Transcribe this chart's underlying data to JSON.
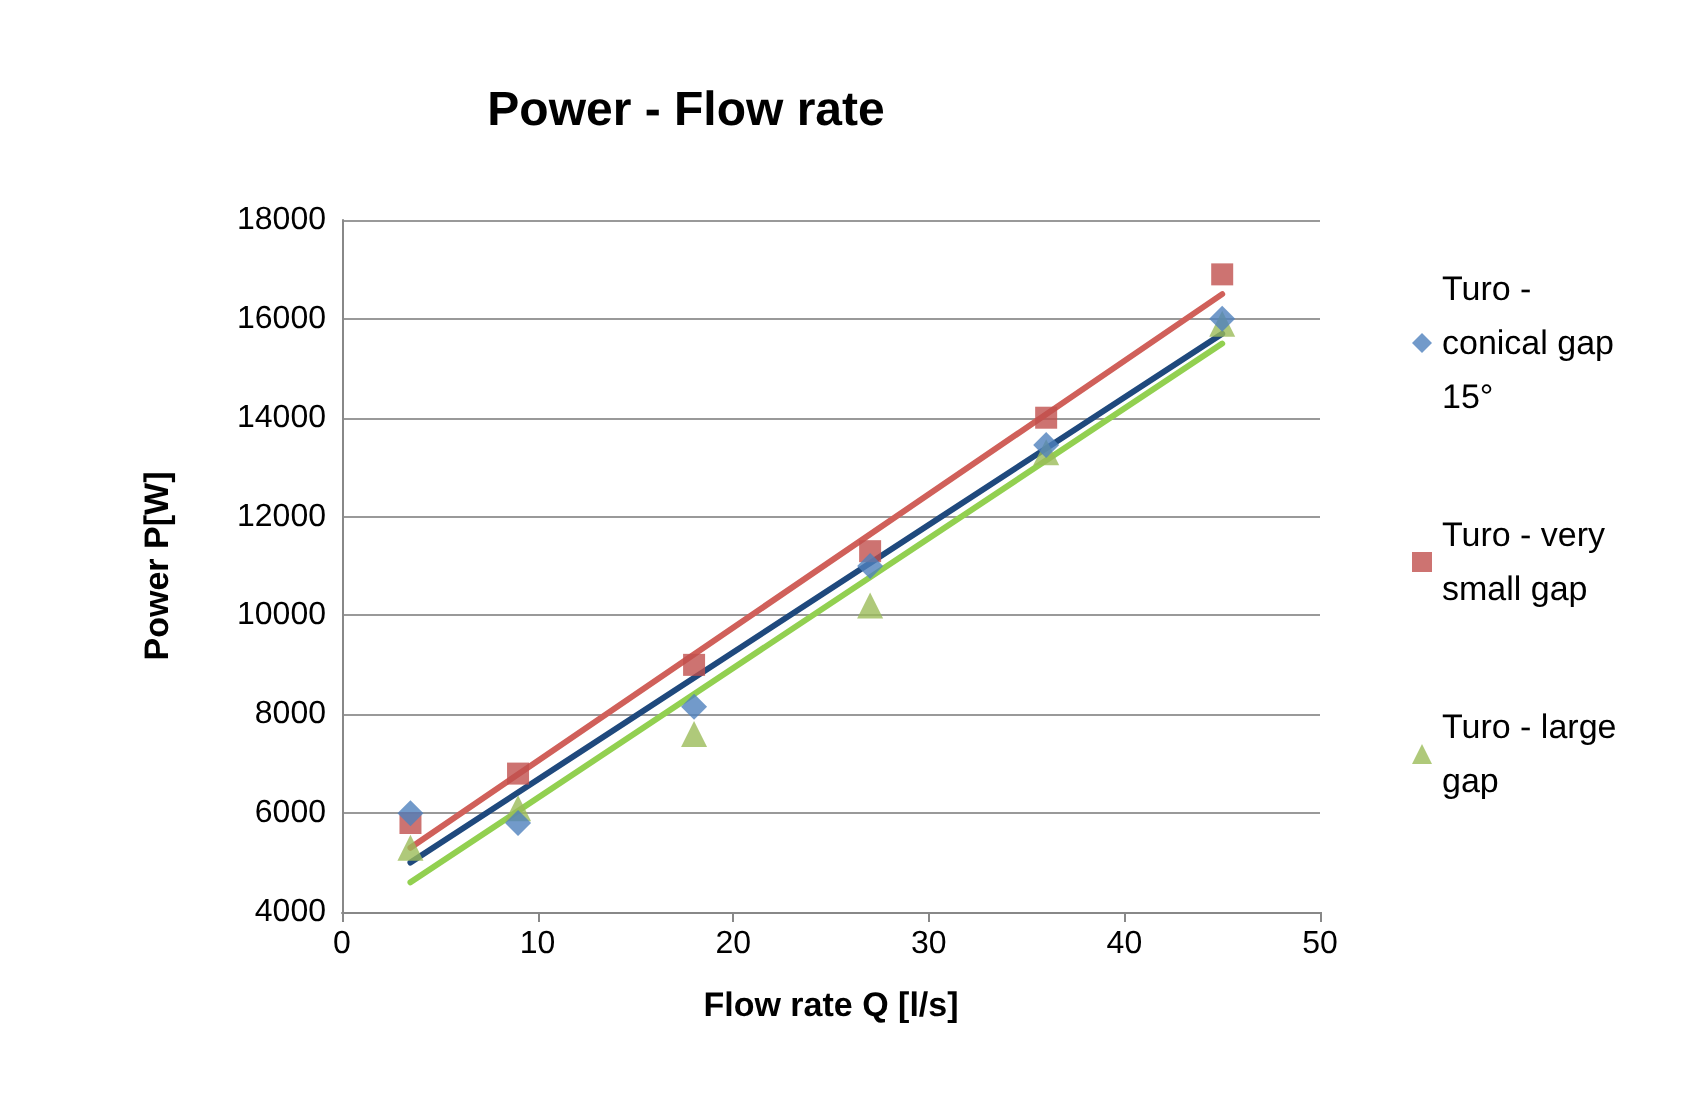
{
  "chart_data": {
    "type": "scatter",
    "title": "Power - Flow rate",
    "xlabel": "Flow rate Q [l/s]",
    "ylabel": "Power P[W]",
    "xlim": [
      0,
      50
    ],
    "xticks": [
      0,
      10,
      20,
      30,
      40,
      50
    ],
    "ylim": [
      4000,
      18000
    ],
    "yticks": [
      4000,
      6000,
      8000,
      10000,
      12000,
      14000,
      16000,
      18000
    ],
    "grid": "y",
    "legend": "right",
    "series": [
      {
        "name": "Turo - conical gap 15°",
        "marker": "diamond",
        "color": "#4f81bd",
        "x": [
          3.5,
          9,
          18,
          27,
          36,
          45
        ],
        "values": [
          6000,
          5800,
          8150,
          11000,
          13450,
          16000
        ]
      },
      {
        "name": "Turo - very small gap",
        "marker": "square",
        "color": "#c0504d",
        "x": [
          3.5,
          9,
          18,
          27,
          36,
          45
        ],
        "values": [
          5800,
          6800,
          9000,
          11300,
          14000,
          16900
        ]
      },
      {
        "name": "Turo - large gap",
        "marker": "triangle",
        "color": "#9bbb59",
        "x": [
          3.5,
          9,
          18,
          27,
          36,
          45
        ],
        "values": [
          5300,
          6100,
          7600,
          10200,
          13300,
          15900
        ]
      },
      {
        "type": "line",
        "marker": "none",
        "color": "#1f497d",
        "x": [
          3.5,
          45
        ],
        "values": [
          5000,
          15700
        ]
      },
      {
        "type": "line",
        "marker": "none",
        "color": "#d0605a",
        "x": [
          3.5,
          45
        ],
        "values": [
          5300,
          16500
        ]
      },
      {
        "type": "line",
        "marker": "none",
        "color": "#92d050",
        "x": [
          3.5,
          45
        ],
        "values": [
          4600,
          15500
        ]
      }
    ]
  }
}
